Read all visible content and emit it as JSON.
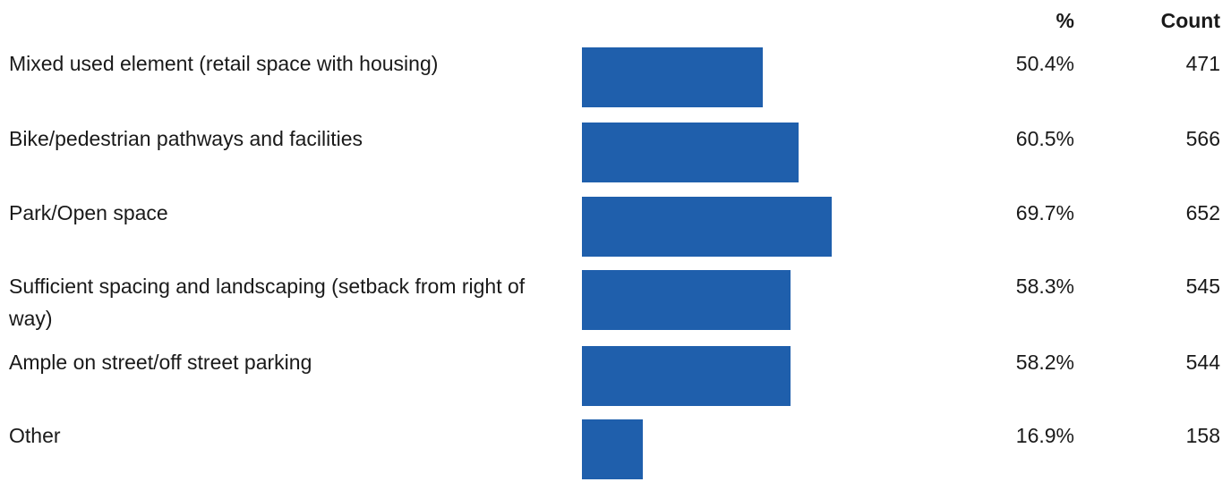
{
  "colors": {
    "bar": "#1f5fac",
    "text": "#1a1a1a",
    "background": "#ffffff"
  },
  "header": {
    "pct_label": "%",
    "count_label": "Count"
  },
  "chart_data": {
    "type": "bar",
    "orientation": "horizontal",
    "title": "",
    "xlabel": "",
    "ylabel": "",
    "xlim": [
      0,
      100
    ],
    "grid": false,
    "legend": "none",
    "columns": [
      "%",
      "Count"
    ],
    "categories": [
      "Mixed used element (retail space with housing)",
      "Bike/pedestrian pathways and facilities",
      "Park/Open space",
      "Sufficient spacing and landscaping (setback from right of way)",
      "Ample on street/off street parking",
      "Other"
    ],
    "values": [
      50.4,
      60.5,
      69.7,
      58.3,
      58.2,
      16.9
    ],
    "percent_labels": [
      "50.4%",
      "60.5%",
      "69.7%",
      "58.3%",
      "58.2%",
      "16.9%"
    ],
    "counts": [
      471,
      566,
      652,
      545,
      544,
      158
    ]
  }
}
